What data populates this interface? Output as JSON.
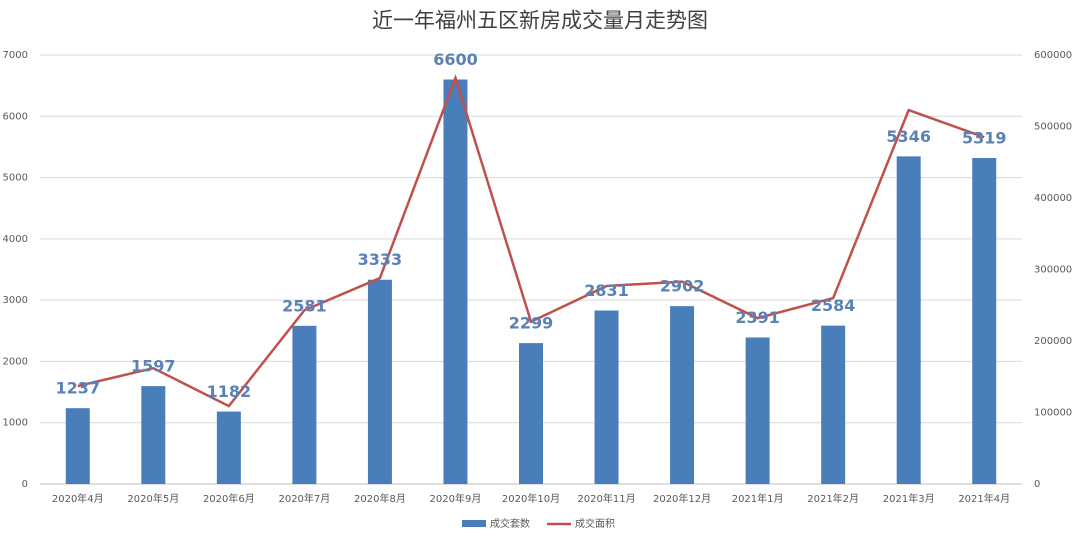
{
  "chart_data": {
    "type": "combo",
    "title": "近一年福州五区新房成交量月走势图",
    "categories": [
      "2020年4月",
      "2020年5月",
      "2020年6月",
      "2020年7月",
      "2020年8月",
      "2020年9月",
      "2020年10月",
      "2020年11月",
      "2020年12月",
      "2021年1月",
      "2021年2月",
      "2021年3月",
      "2021年4月"
    ],
    "series": [
      {
        "name": "成交套数",
        "type": "bar",
        "color": "#4a7ebb",
        "values": [
          1237,
          1597,
          1182,
          2581,
          3333,
          6600,
          2299,
          2831,
          2902,
          2391,
          2584,
          5346,
          5319
        ]
      },
      {
        "name": "成交面积",
        "type": "line",
        "axis": "y2",
        "color": "#c0504d",
        "values": [
          137000,
          162000,
          109000,
          243000,
          288000,
          568000,
          227000,
          277000,
          283000,
          232000,
          260000,
          523000,
          485000
        ]
      }
    ],
    "ylim": [
      0,
      7000
    ],
    "yticks": [
      0,
      1000,
      2000,
      3000,
      4000,
      5000,
      6000,
      7000
    ],
    "y2lim": [
      0,
      600000
    ],
    "y2ticks": [
      0,
      100000,
      200000,
      300000,
      400000,
      500000,
      600000
    ],
    "grid": true,
    "legend": "bottom"
  }
}
